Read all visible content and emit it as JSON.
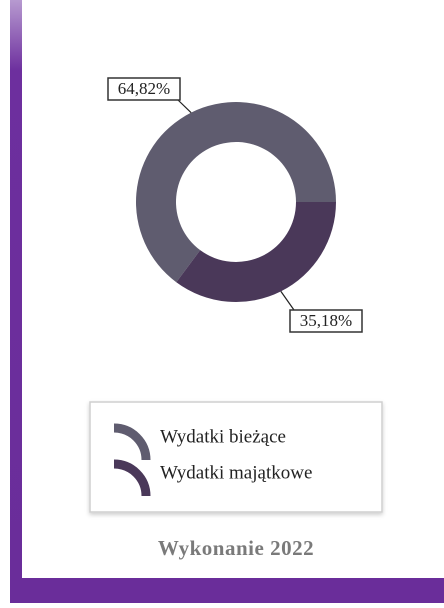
{
  "chart_data": {
    "type": "donut",
    "title": "Wykonanie 2022",
    "categories": [
      "Wydatki bieżące",
      "Wydatki majątkowe"
    ],
    "values": [
      64.82,
      35.18
    ],
    "value_labels": [
      "64,82%",
      "35,18%"
    ],
    "colors": [
      "#5f5c6f",
      "#4a3859"
    ],
    "legend": true
  }
}
